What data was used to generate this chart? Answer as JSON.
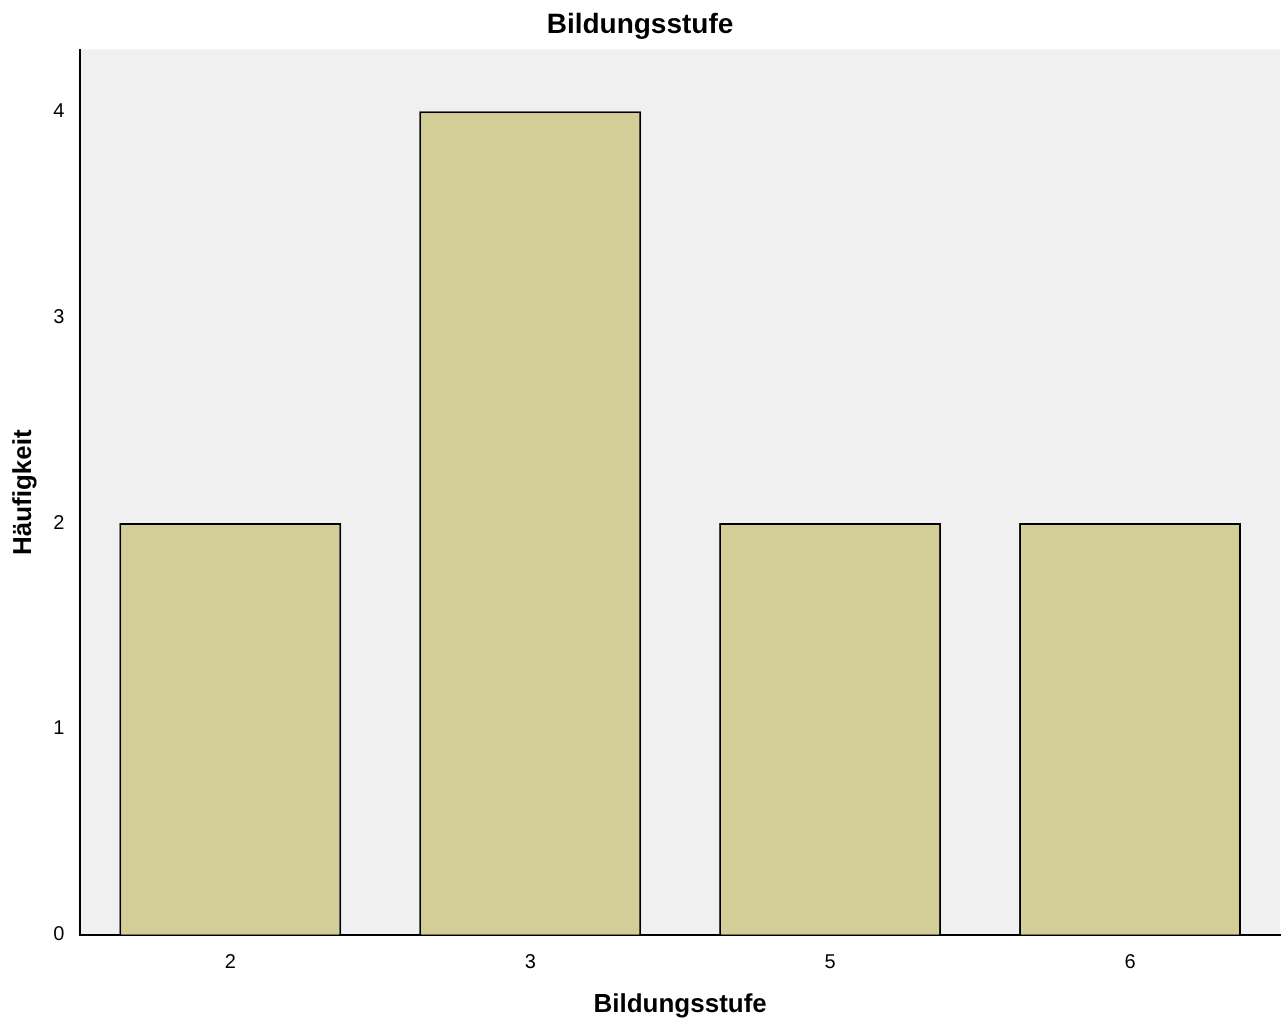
{
  "chart_data": {
    "type": "bar",
    "title": "Bildungsstufe",
    "xlabel": "Bildungsstufe",
    "ylabel": "Häufigkeit",
    "categories": [
      "2",
      "3",
      "5",
      "6"
    ],
    "values": [
      2,
      4,
      2,
      2
    ],
    "color": "#d3ce97",
    "ylim": [
      0,
      4.3
    ],
    "yticks": [
      0,
      1,
      2,
      3,
      4
    ],
    "grid": false,
    "legend": false
  }
}
